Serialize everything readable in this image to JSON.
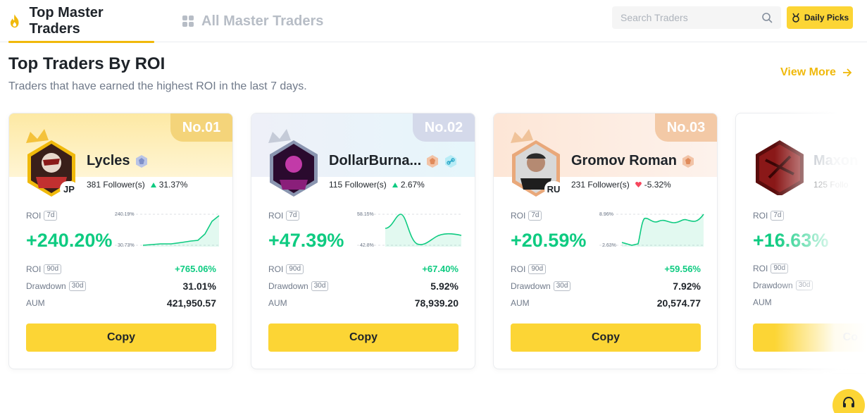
{
  "nav": {
    "tab_top": "Top Master Traders",
    "tab_all": "All Master Traders",
    "search_placeholder": "Search Traders",
    "daily_picks": "Daily Picks"
  },
  "section": {
    "title": "Top Traders By ROI",
    "subtitle": "Traders that have earned the highest ROI in the last 7 days.",
    "view_more": "View More"
  },
  "labels": {
    "roi": "ROI",
    "drawdown": "Drawdown",
    "aum": "AUM",
    "tag_7d": "7d",
    "tag_90d": "90d",
    "tag_30d": "30d",
    "copy": "Copy"
  },
  "colors": {
    "accent": "#fcd535",
    "brand": "#f0b90b",
    "up": "#0ecb81",
    "down": "#f6465d"
  },
  "traders": [
    {
      "rank": "No.01",
      "name": "Lycles",
      "country": "JP",
      "followers": "381 Follower(s)",
      "follower_change": "31.37%",
      "follower_trend": "up",
      "roi_7d": "+240.20%",
      "spark_high": "240.19%",
      "spark_low": "30.73%",
      "roi_90d": "+765.06%",
      "drawdown_30d": "31.01%",
      "aum": "421,950.57",
      "badge_icon": "diamond-badge-icon"
    },
    {
      "rank": "No.02",
      "name": "DollarBurna...",
      "country": "",
      "followers": "115 Follower(s)",
      "follower_change": "2.67%",
      "follower_trend": "up",
      "roi_7d": "+47.39%",
      "spark_high": "58.15%",
      "spark_low": "42.8%",
      "roi_90d": "+67.40%",
      "drawdown_30d": "5.92%",
      "aum": "78,939.20",
      "badge_icon": "bronze-badge-icon"
    },
    {
      "rank": "No.03",
      "name": "Gromov Roman",
      "country": "RU",
      "followers": "231 Follower(s)",
      "follower_change": "-5.32%",
      "follower_trend": "down",
      "roi_7d": "+20.59%",
      "spark_high": "8.96%",
      "spark_low": "2.63%",
      "roi_90d": "+59.56%",
      "drawdown_30d": "7.92%",
      "aum": "20,574.77",
      "badge_icon": "bronze-badge-icon"
    },
    {
      "rank": "",
      "name": "Maxon",
      "country": "",
      "followers": "125 Follo",
      "roi_7d": "+16.63%",
      "copy_partial": "Co"
    }
  ]
}
